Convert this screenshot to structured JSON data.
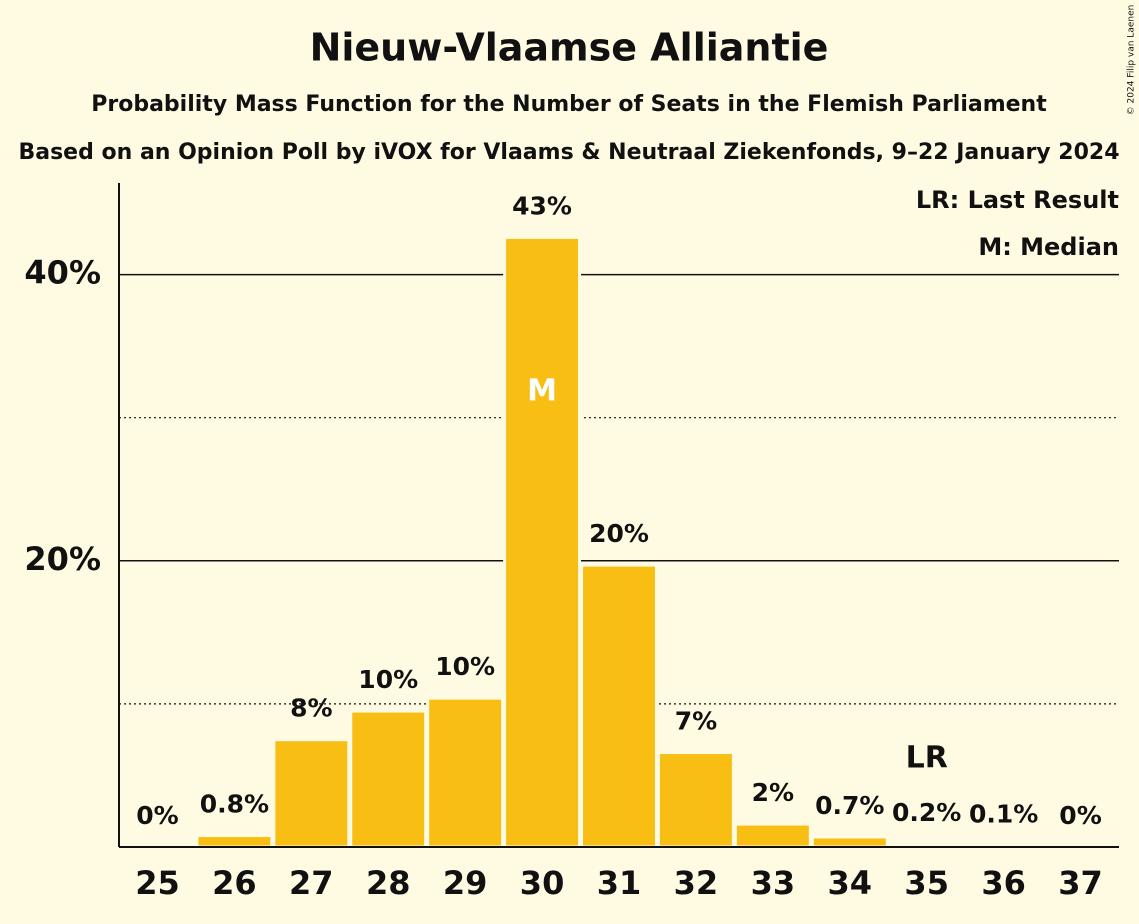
{
  "chart_data": {
    "type": "bar",
    "title": "Nieuw-Vlaamse Alliantie",
    "subtitle": "Probability Mass Function for the Number of Seats in the Flemish Parliament",
    "subtitle2": "Based on an Opinion Poll by iVOX for Vlaams & Neutraal Ziekenfonds, 9–22 January 2024",
    "copyright": "© 2024 Filip van Laenen",
    "categories": [
      "25",
      "26",
      "27",
      "28",
      "29",
      "30",
      "31",
      "32",
      "33",
      "34",
      "35",
      "36",
      "37"
    ],
    "values": [
      0,
      0.8,
      7.5,
      9.5,
      10.4,
      42.6,
      19.7,
      6.6,
      1.6,
      0.7,
      0.2,
      0.1,
      0
    ],
    "value_labels": [
      "0%",
      "0.8%",
      "8%",
      "10%",
      "10%",
      "43%",
      "20%",
      "7%",
      "2%",
      "0.7%",
      "0.2%",
      "0.1%",
      "0%"
    ],
    "color": "#f9be14",
    "ylim": [
      0,
      46.4
    ],
    "yticks": [
      {
        "value": 20,
        "label": "20%"
      },
      {
        "value": 40,
        "label": "40%"
      }
    ],
    "minor_gridlines": [
      10,
      30
    ],
    "grid": true,
    "annotations": [
      {
        "text": "M",
        "category": "30"
      },
      {
        "text": "LR",
        "category": "35"
      }
    ],
    "legend": [
      "LR: Last Result",
      "M: Median"
    ],
    "legend_position": "top-right"
  }
}
